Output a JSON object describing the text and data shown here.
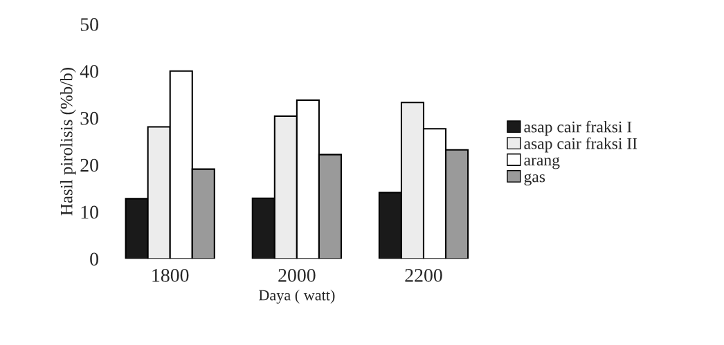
{
  "chart_data": {
    "type": "bar",
    "xlabel": "Daya ( watt)",
    "ylabel": "Hasil pirolisis (%b/b)",
    "categories": [
      "1800",
      "2000",
      "2200"
    ],
    "series": [
      {
        "name": "asap cair fraksi I",
        "color": "#1a1a1a",
        "values": [
          12.8,
          12.9,
          14.1
        ]
      },
      {
        "name": "asap cair fraksi II",
        "color": "#ececec",
        "values": [
          28.1,
          30.4,
          33.3
        ]
      },
      {
        "name": "arang",
        "color": "#ffffff",
        "values": [
          40,
          33.8,
          27.7
        ]
      },
      {
        "name": "gas",
        "color": "#9a9a9a",
        "values": [
          19.1,
          22.2,
          23.2
        ]
      }
    ],
    "ylim": [
      0,
      50
    ],
    "yticks": [
      0,
      10,
      20,
      30,
      40,
      50
    ],
    "grid": false,
    "legend": "right"
  }
}
